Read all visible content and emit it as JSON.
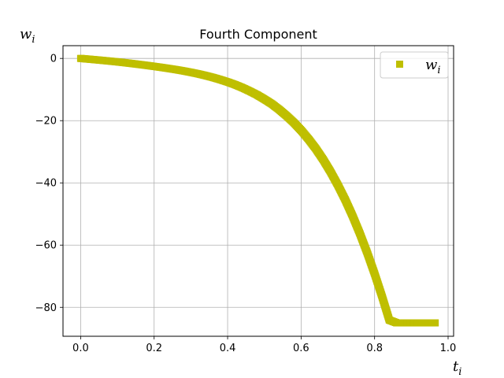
{
  "chart_data": {
    "type": "scatter",
    "title": "Fourth Component",
    "xlabel": {
      "base": "t",
      "sub": "i"
    },
    "ylabel": {
      "base": "w",
      "sub": "i"
    },
    "xlim": [
      -0.048,
      1.015
    ],
    "ylim": [
      -89.3,
      4.1
    ],
    "xticks": [
      0.0,
      0.2,
      0.4,
      0.6,
      0.8,
      1.0
    ],
    "xtick_labels": [
      "0.0",
      "0.2",
      "0.4",
      "0.6",
      "0.8",
      "1.0"
    ],
    "yticks": [
      0,
      -20,
      -40,
      -60,
      -80
    ],
    "ytick_labels": [
      "0",
      "−20",
      "−40",
      "−60",
      "−80"
    ],
    "grid": true,
    "legend_position": "top-right",
    "marker": "square",
    "series": [
      {
        "name": "w",
        "name_sub": "i",
        "color": "#bfbf00",
        "x": [
          0.0,
          0.02,
          0.04,
          0.06,
          0.08,
          0.1,
          0.12,
          0.14,
          0.16,
          0.18,
          0.2,
          0.22,
          0.24,
          0.26,
          0.28,
          0.3,
          0.32,
          0.34,
          0.36,
          0.38,
          0.4,
          0.42,
          0.44,
          0.46,
          0.48,
          0.5,
          0.52,
          0.54,
          0.56,
          0.58,
          0.6,
          0.62,
          0.64,
          0.66,
          0.68,
          0.7,
          0.72,
          0.74,
          0.76,
          0.78,
          0.8,
          0.82,
          0.84,
          0.86,
          0.88,
          0.9,
          0.92,
          0.94,
          0.96,
          0.965
        ],
        "y": [
          0.0,
          -0.21,
          -0.42,
          -0.64,
          -0.87,
          -1.11,
          -1.37,
          -1.65,
          -1.94,
          -2.24,
          -2.56,
          -2.89,
          -3.24,
          -3.61,
          -4.02,
          -4.47,
          -4.96,
          -5.51,
          -6.12,
          -6.81,
          -7.57,
          -8.42,
          -9.39,
          -10.5,
          -11.7,
          -13.1,
          -14.6,
          -16.4,
          -18.4,
          -20.6,
          -23.1,
          -25.9,
          -29.0,
          -32.5,
          -36.4,
          -40.7,
          -45.4,
          -50.6,
          -56.3,
          -62.5,
          -69.2,
          -76.4,
          -84.1,
          -85.0,
          -85.0,
          -85.0,
          -85.0,
          -85.0,
          -85.0,
          -85.0
        ]
      }
    ]
  }
}
